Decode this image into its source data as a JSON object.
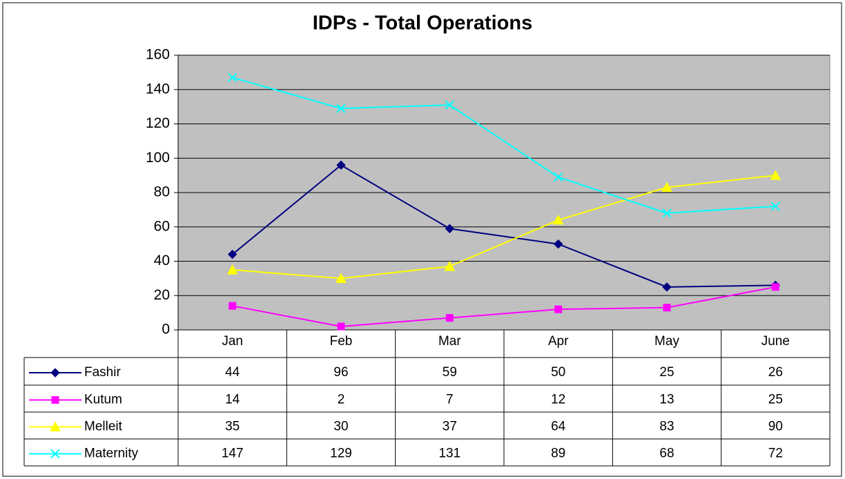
{
  "chart_data": {
    "type": "line",
    "title": "IDPs - Total Operations",
    "categories": [
      "Jan",
      "Feb",
      "Mar",
      "Apr",
      "May",
      "June"
    ],
    "series": [
      {
        "name": "Fashir",
        "color": "#000080",
        "marker": "diamond",
        "values": [
          44,
          96,
          59,
          50,
          25,
          26
        ]
      },
      {
        "name": "Kutum",
        "color": "#ff00ff",
        "marker": "square",
        "values": [
          14,
          2,
          7,
          12,
          13,
          25
        ]
      },
      {
        "name": "Melleit",
        "color": "#ffff00",
        "marker": "triangle",
        "values": [
          35,
          30,
          37,
          64,
          83,
          90
        ]
      },
      {
        "name": "Maternity",
        "color": "#00ffff",
        "marker": "x",
        "values": [
          147,
          129,
          131,
          89,
          68,
          72
        ]
      }
    ],
    "ylim": [
      0,
      160
    ],
    "yticks": [
      0,
      20,
      40,
      60,
      80,
      100,
      120,
      140,
      160
    ],
    "grid": true,
    "data_table": true
  }
}
